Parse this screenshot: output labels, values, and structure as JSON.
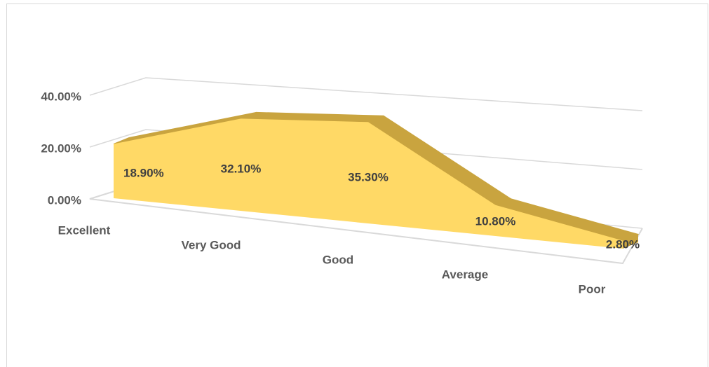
{
  "chart_data": {
    "type": "area3d",
    "categories": [
      "Excellent",
      "Very Good",
      "Good",
      "Average",
      "Poor"
    ],
    "values": [
      18.9,
      32.1,
      35.3,
      10.8,
      2.8
    ],
    "value_labels": [
      "18.90%",
      "32.10%",
      "35.30%",
      "10.80%",
      "2.80%"
    ],
    "color": "#ffd966",
    "ylim": [
      0,
      40
    ],
    "yticks": [
      {
        "value": 0,
        "label": "0.00%"
      },
      {
        "value": 20,
        "label": "20.00%"
      },
      {
        "value": 40,
        "label": "40.00%"
      }
    ],
    "grid": true
  }
}
